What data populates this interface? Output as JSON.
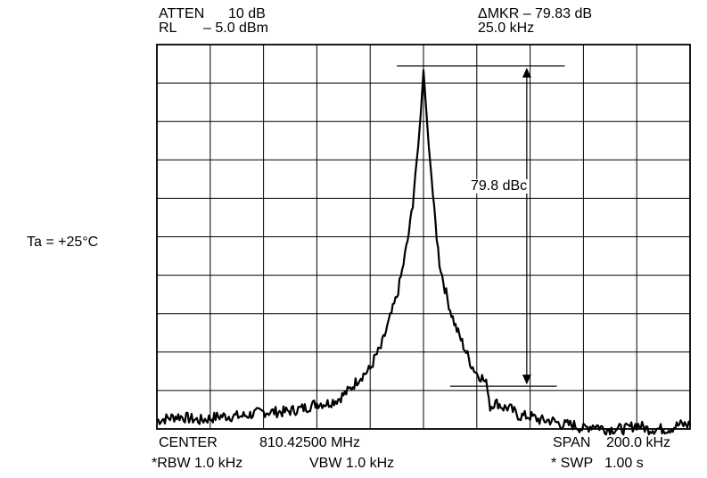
{
  "header": {
    "atten_label": "ATTEN",
    "atten_value": "10 dB",
    "rl_label": "RL",
    "rl_value": "– 5.0 dBm",
    "marker_line": "ΔMKR – 79.83 dB",
    "marker_freq": "25.0 kHz"
  },
  "side_note": "Ta = +25°C",
  "annotation": "79.8 dBc",
  "footer": {
    "center_label": "CENTER",
    "center_value": "810.42500 MHz",
    "span_label": "SPAN",
    "span_value": "200.0 kHz",
    "rbw": "*RBW 1.0 kHz",
    "vbw": "VBW 1.0 kHz",
    "swp": "* SWP   1.00 s"
  },
  "chart_data": {
    "type": "line",
    "title": "",
    "xlabel": "",
    "ylabel": "",
    "x_unit": "offset from center (kHz)",
    "y_unit": "dB",
    "xlim": [
      -100,
      100
    ],
    "ylim": [
      -85,
      5
    ],
    "grid": true,
    "grid_divisions": {
      "x": 10,
      "y": 10
    },
    "line_color": "#000000",
    "marker_delta_db": -79.83,
    "marker_offset_khz": 25.0,
    "series": [
      {
        "x": [
          -100,
          -92,
          -84,
          -76,
          -68,
          -60,
          -52,
          -44,
          -40,
          -36,
          -32,
          -28,
          -24,
          -20,
          -18,
          -16,
          -14,
          -12,
          -10,
          -8,
          -6,
          -5,
          -4,
          -3,
          -2,
          -1,
          0,
          1,
          2,
          3,
          4,
          5,
          6,
          8,
          10,
          12,
          14,
          16,
          18,
          20,
          22,
          24,
          25,
          26,
          28,
          30,
          32,
          36,
          40,
          44,
          48,
          52,
          56,
          60,
          64,
          68,
          72,
          76,
          80,
          84,
          88,
          92,
          96,
          100
        ],
        "y": [
          -83,
          -82,
          -83,
          -82,
          -82,
          -81,
          -81,
          -80,
          -79,
          -79,
          -78,
          -76,
          -73,
          -71,
          -68,
          -66,
          -62,
          -58,
          -54,
          -48,
          -41,
          -37,
          -32,
          -25,
          -19,
          -11,
          -1,
          -10,
          -19,
          -26,
          -34,
          -40,
          -46,
          -52,
          -57,
          -61,
          -64,
          -67,
          -70,
          -72,
          -73,
          -75,
          -80,
          -79,
          -79,
          -80,
          -80,
          -82,
          -82,
          -83,
          -83,
          -84,
          -84,
          -85,
          -84,
          -85,
          -85,
          -85,
          -84,
          -85,
          -85,
          -85,
          -84,
          -84
        ]
      }
    ]
  }
}
